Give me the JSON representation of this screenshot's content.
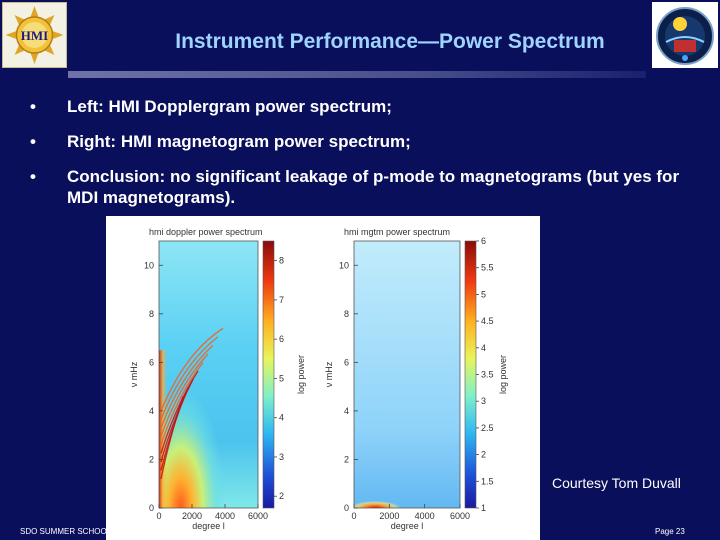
{
  "title": "Instrument Performance—Power Spectrum",
  "bullets": [
    "Left: HMI Dopplergram power spectrum;",
    "Right: HMI magnetogram power spectrum;",
    "Conclusion: no significant leakage of p-mode to magnetograms (but yes for MDI magnetograms)."
  ],
  "bullet_marker": "•",
  "courtesy": "Courtesy Tom Duvall",
  "footer_left": "SDO SUMMER SCHOO",
  "footer_right": "Page 23",
  "colors": {
    "background": "#0a0f5c",
    "title": "#9fd4ff",
    "text": "#ffffff"
  },
  "chart_data": [
    {
      "type": "heatmap",
      "title": "hmi doppler power spectrum",
      "xlabel": "degree l",
      "ylabel": "ν mHz",
      "x_ticks": [
        0,
        2000,
        4000,
        6000
      ],
      "y_ticks": [
        0,
        2,
        4,
        6,
        8,
        10
      ],
      "colorbar_label": "log power",
      "colorbar_ticks": [
        2,
        3,
        4,
        5,
        6,
        7,
        8
      ],
      "colorbar_range": [
        1.7,
        8.5
      ]
    },
    {
      "type": "heatmap",
      "title": "hmi mgtm power spectrum",
      "xlabel": "degree l",
      "ylabel": "ν mHz",
      "x_ticks": [
        0,
        2000,
        4000,
        6000
      ],
      "y_ticks": [
        0,
        2,
        4,
        6,
        8,
        10
      ],
      "colorbar_label": "log power",
      "colorbar_ticks": [
        1,
        1.5,
        2,
        2.5,
        3,
        3.5,
        4,
        4.5,
        5,
        5.5,
        6
      ],
      "colorbar_range": [
        1,
        6
      ]
    }
  ]
}
